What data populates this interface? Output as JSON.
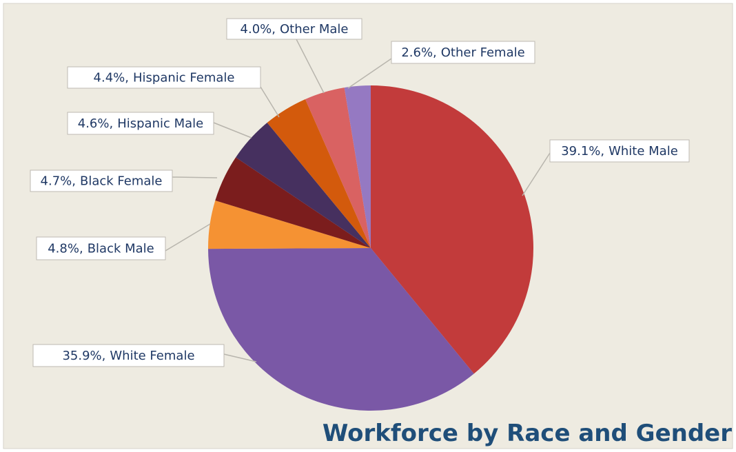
{
  "chart_data": {
    "type": "pie",
    "title": "Workforce by Race and Gender",
    "categories": [
      "White Male",
      "White Female",
      "Black Male",
      "Black Female",
      "Hispanic Male",
      "Hispanic Female",
      "Other Male",
      "Other Female"
    ],
    "values": [
      39.1,
      35.9,
      4.8,
      4.7,
      4.6,
      4.4,
      4.0,
      2.6
    ],
    "value_labels": [
      "39.1%,",
      "35.9%,",
      "4.8%,",
      "4.7%,",
      "4.6%,",
      "4.4%,",
      "4.0%,",
      "2.6%,"
    ],
    "colors": [
      "#c23b3b",
      "#7a58a6",
      "#f59233",
      "#7b1d1d",
      "#46305f",
      "#d35a0c",
      "#d96262",
      "#9579c2"
    ]
  }
}
